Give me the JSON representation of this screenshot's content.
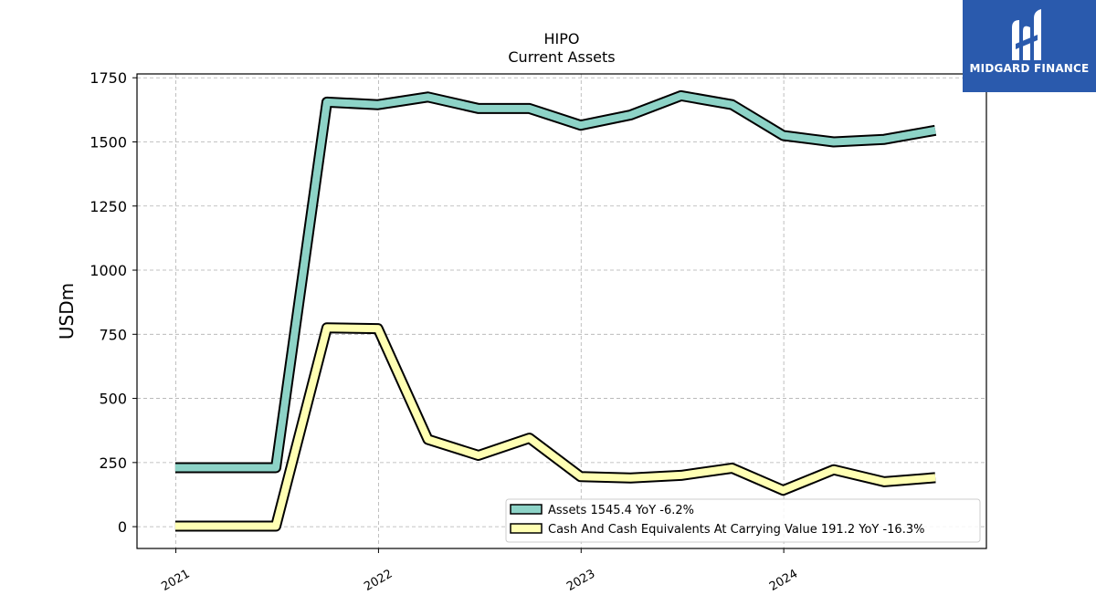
{
  "chart_data": {
    "type": "line",
    "title": "HIPO",
    "subtitle": "Current  Assets",
    "ylabel": "USDm",
    "xlabel": "",
    "ylim": [
      -85,
      1765
    ],
    "xlim": [
      "2020-10-23",
      "2024-12-31"
    ],
    "yticks": [
      0,
      250,
      500,
      750,
      1000,
      1250,
      1500,
      1750
    ],
    "xticks": [
      {
        "label": "2021",
        "date": "2021-01-01"
      },
      {
        "label": "2022",
        "date": "2022-01-01"
      },
      {
        "label": "2023",
        "date": "2023-01-01"
      },
      {
        "label": "2024",
        "date": "2024-01-01"
      }
    ],
    "grid": true,
    "legend_position": "lower-right",
    "series": [
      {
        "name": "Assets",
        "legend_label": "Assets  1545.4 YoY -6.2%",
        "color": "#8dd3c7",
        "points": [
          {
            "x": "2020-12-31",
            "y": 230
          },
          {
            "x": "2021-06-30",
            "y": 230
          },
          {
            "x": "2021-09-30",
            "y": 1655
          },
          {
            "x": "2021-12-31",
            "y": 1645
          },
          {
            "x": "2022-03-31",
            "y": 1675
          },
          {
            "x": "2022-06-30",
            "y": 1630
          },
          {
            "x": "2022-09-30",
            "y": 1630
          },
          {
            "x": "2022-12-31",
            "y": 1565
          },
          {
            "x": "2023-03-31",
            "y": 1605
          },
          {
            "x": "2023-06-30",
            "y": 1680
          },
          {
            "x": "2023-09-30",
            "y": 1645
          },
          {
            "x": "2023-12-31",
            "y": 1525
          },
          {
            "x": "2024-03-31",
            "y": 1500
          },
          {
            "x": "2024-06-30",
            "y": 1510
          },
          {
            "x": "2024-09-30",
            "y": 1545
          }
        ]
      },
      {
        "name": "Cash And Cash Equivalents At Carrying Value",
        "legend_label": "Cash And Cash Equivalents At Carrying Value  191.2 YoY -16.3%",
        "color": "#ffffb3",
        "points": [
          {
            "x": "2020-12-31",
            "y": 2
          },
          {
            "x": "2021-06-30",
            "y": 2
          },
          {
            "x": "2021-09-30",
            "y": 775
          },
          {
            "x": "2021-12-31",
            "y": 772
          },
          {
            "x": "2022-03-31",
            "y": 340
          },
          {
            "x": "2022-06-30",
            "y": 278
          },
          {
            "x": "2022-09-30",
            "y": 345
          },
          {
            "x": "2022-12-31",
            "y": 195
          },
          {
            "x": "2023-03-31",
            "y": 190
          },
          {
            "x": "2023-06-30",
            "y": 200
          },
          {
            "x": "2023-09-30",
            "y": 228
          },
          {
            "x": "2023-12-31",
            "y": 142
          },
          {
            "x": "2024-03-31",
            "y": 222
          },
          {
            "x": "2024-06-30",
            "y": 175
          },
          {
            "x": "2024-09-30",
            "y": 191
          }
        ]
      }
    ]
  },
  "logo": {
    "text": "MIDGARD FINANCE",
    "background": "#2a5aad"
  }
}
